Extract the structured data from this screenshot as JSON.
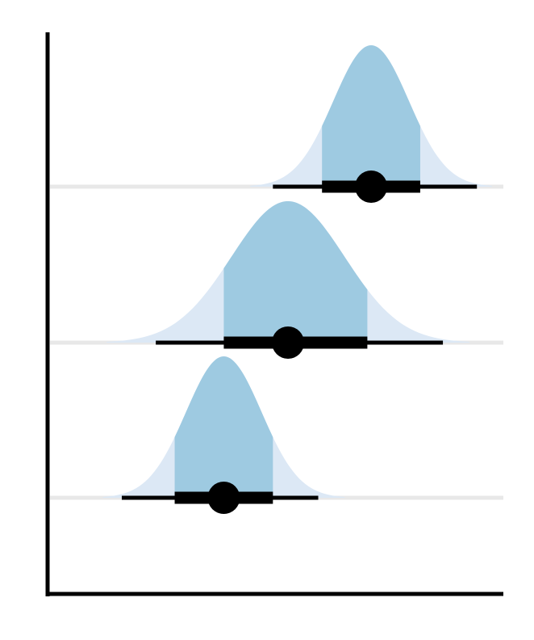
{
  "colors": {
    "background": "#ffffff",
    "axis": "#000000",
    "gridline": "#e8e8e8",
    "density_outer": "#dce8f5",
    "density_inner": "#9ecae1",
    "interval": "#000000",
    "point": "#000000"
  },
  "chart_data": {
    "type": "halfeye",
    "title": "",
    "xlabel": "",
    "ylabel": "",
    "grid": "horizontal",
    "xlim": [
      -1,
      11
    ],
    "series": [
      {
        "median": 7.5,
        "sd": 1.0,
        "inner_interval": [
          6.2,
          8.8
        ],
        "outer_interval": [
          4.9,
          10.3
        ]
      },
      {
        "median": 5.3,
        "sd": 1.5,
        "inner_interval": [
          3.6,
          7.4
        ],
        "outer_interval": [
          1.8,
          9.4
        ]
      },
      {
        "median": 3.6,
        "sd": 1.0,
        "inner_interval": [
          2.3,
          4.9
        ],
        "outer_interval": [
          0.9,
          6.1
        ]
      }
    ]
  }
}
